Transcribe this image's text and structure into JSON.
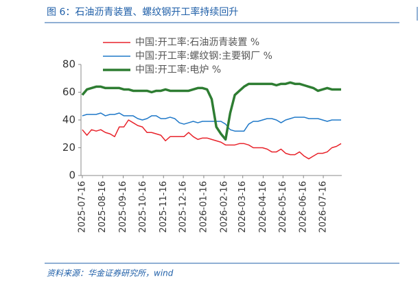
{
  "header": {
    "title": "图 6：石油沥青装置、螺纹钢开工率持续回升"
  },
  "chart_data": {
    "type": "line",
    "x": [
      "2025-07-16",
      "2025-07-23",
      "2025-07-30",
      "2025-08-06",
      "2025-08-13",
      "2025-08-20",
      "2025-08-27",
      "2025-09-03",
      "2025-09-10",
      "2025-09-17",
      "2025-09-24",
      "2025-10-01",
      "2025-10-08",
      "2025-10-15",
      "2025-10-22",
      "2025-10-29",
      "2025-11-05",
      "2025-11-12",
      "2025-11-19",
      "2025-11-26",
      "2025-12-03",
      "2025-12-10",
      "2025-12-17",
      "2025-12-24",
      "2025-12-31",
      "2026-01-07",
      "2026-01-14",
      "2026-01-21",
      "2026-01-28",
      "2026-02-04",
      "2026-02-11",
      "2026-02-18",
      "2026-02-25",
      "2026-03-04",
      "2026-03-11",
      "2026-03-18",
      "2026-03-25",
      "2026-04-01",
      "2026-04-08",
      "2026-04-15",
      "2026-04-22",
      "2026-04-29",
      "2026-05-06",
      "2026-05-13",
      "2026-05-20",
      "2026-05-27",
      "2026-06-03",
      "2026-06-10",
      "2026-06-17",
      "2026-06-24",
      "2026-07-01",
      "2026-07-08",
      "2026-07-15",
      "2026-07-22",
      "2026-07-29",
      "2026-08-05",
      "2026-08-12"
    ],
    "series": [
      {
        "name": "中国:开工率:石油沥青装置 %",
        "color": "#e8222a",
        "width": 1.5,
        "values": [
          33,
          29,
          33,
          32,
          33,
          31,
          30,
          28,
          35,
          35,
          40,
          38,
          36,
          35,
          31,
          31,
          30,
          29,
          25,
          28,
          28,
          28,
          28,
          31,
          28,
          26,
          27,
          27,
          26,
          25,
          24,
          22,
          22,
          22,
          23,
          23,
          22,
          20,
          20,
          20,
          19,
          17,
          17,
          19,
          16,
          15,
          15,
          17,
          14,
          12,
          14,
          16,
          16,
          17,
          20,
          21,
          23
        ]
      },
      {
        "name": "中国:开工率:螺纹钢:主要钢厂 %",
        "color": "#1f78c8",
        "width": 1.5,
        "values": [
          43,
          44,
          44,
          44,
          45,
          43,
          44,
          44,
          45,
          43,
          43,
          43,
          41,
          40,
          41,
          43,
          43,
          41,
          41,
          42,
          41,
          38,
          37,
          38,
          39,
          38,
          39,
          39,
          39,
          39,
          39,
          37,
          33,
          32,
          32,
          32,
          37,
          39,
          39,
          40,
          41,
          41,
          40,
          38,
          40,
          41,
          42,
          42,
          42,
          41,
          41,
          41,
          40,
          39,
          40,
          40,
          40
        ]
      },
      {
        "name": "中国:开工率:电炉 %",
        "color": "#2e7d32",
        "width": 3.5,
        "values": [
          58,
          62,
          63,
          64,
          64,
          63,
          63,
          63,
          63,
          62,
          62,
          61,
          61,
          61,
          61,
          60,
          61,
          61,
          62,
          61,
          61,
          61,
          61,
          61,
          62,
          63,
          63,
          62,
          55,
          35,
          30,
          26,
          45,
          58,
          61,
          64,
          66,
          66,
          66,
          66,
          66,
          66,
          65,
          66,
          66,
          67,
          66,
          66,
          65,
          64,
          63,
          61,
          62,
          63,
          62,
          62,
          62
        ]
      }
    ],
    "xlim": [
      "2025-07-14",
      "2026-08-13"
    ],
    "xticks": [
      "2025-07-16",
      "2025-08-16",
      "2025-09-16",
      "2025-10-16",
      "2025-11-16",
      "2025-12-16",
      "2026-01-16",
      "2026-02-16",
      "2026-03-16",
      "2026-04-16",
      "2026-05-16",
      "2026-06-16",
      "2026-07-16"
    ],
    "ylim": [
      0,
      80
    ],
    "yticks": [
      0,
      20,
      40,
      60,
      80
    ],
    "grid": false,
    "legend": "top-left"
  },
  "footer": {
    "source": "资料来源：华金证券研究所，wind"
  }
}
